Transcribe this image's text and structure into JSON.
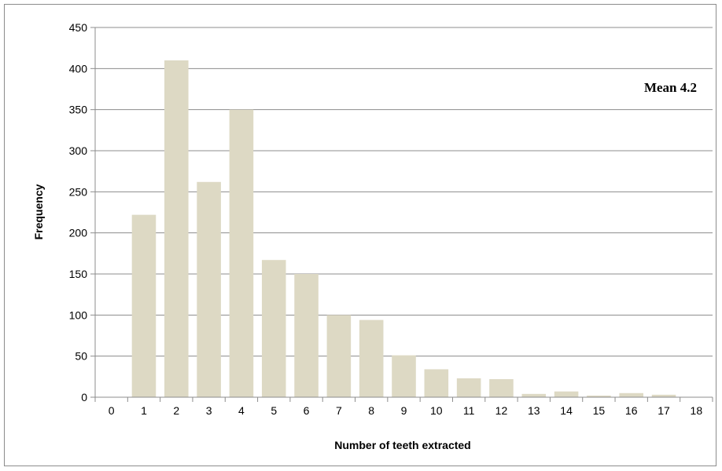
{
  "chart_data": {
    "type": "bar",
    "title": "",
    "xlabel": "Number of teeth extracted",
    "ylabel": "Frequency",
    "categories": [
      "0",
      "1",
      "2",
      "3",
      "4",
      "5",
      "6",
      "7",
      "8",
      "9",
      "10",
      "11",
      "12",
      "13",
      "14",
      "15",
      "16",
      "17",
      "18"
    ],
    "values": [
      0,
      222,
      410,
      262,
      350,
      167,
      150,
      100,
      94,
      51,
      34,
      23,
      22,
      4,
      7,
      2,
      5,
      3,
      0
    ],
    "ylim": [
      0,
      450
    ],
    "yticks": [
      0,
      50,
      100,
      150,
      200,
      250,
      300,
      350,
      400,
      450
    ],
    "grid": true,
    "bar_color": "#ddd9c4",
    "annotation": "Mean 4.2"
  }
}
